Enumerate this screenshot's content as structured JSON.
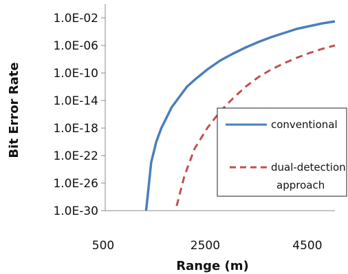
{
  "chart_data": {
    "type": "line",
    "title": "",
    "xlabel": "Range (m)",
    "ylabel": "Bit Error Rate",
    "xlim": [
      500,
      5000
    ],
    "xticks": [
      500,
      2500,
      4500
    ],
    "xtick_labels": [
      "500",
      "2500",
      "4500"
    ],
    "ylim_log10": [
      -30,
      0
    ],
    "y_scale": "log",
    "yticks_log10": [
      -2,
      -6,
      -10,
      -14,
      -18,
      -22,
      -26,
      -30
    ],
    "ytick_labels": [
      "1.0E-02",
      "1.0E-06",
      "1.0E-10",
      "1.0E-14",
      "1.0E-18",
      "1.0E-22",
      "1.0E-26",
      "1.0E-30"
    ],
    "grid": false,
    "legend_position": "right",
    "series": [
      {
        "name": "conventional",
        "style": "solid",
        "color": "#4a7ebb",
        "x": [
          1300,
          1330,
          1400,
          1500,
          1600,
          1700,
          1800,
          1900,
          2000,
          2100,
          2250,
          2500,
          2750,
          3000,
          3250,
          3500,
          3750,
          4000,
          4250,
          4500,
          4750,
          5000
        ],
        "y": [
          "1.0E-30",
          "1.0E-28",
          "1.0E-23",
          "1.0E-20",
          "1.0E-18",
          "1.0E-16.5",
          "1.0E-15",
          "1.0E-14",
          "1.0E-13",
          "1.0E-12",
          "1.0E-11",
          "1.0E-9.5",
          "1.0E-8.2",
          "1.0E-7.2",
          "1.0E-6.3",
          "1.0E-5.5",
          "1.0E-4.8",
          "1.0E-4.2",
          "1.0E-3.6",
          "1.0E-3.2",
          "1.0E-2.8",
          "1.0E-2.5"
        ]
      },
      {
        "name": "dual-detection approach",
        "style": "dashed",
        "color": "#c0504d",
        "x": [
          1900,
          2050,
          2250,
          2500,
          2750,
          3000,
          3250,
          3500,
          3750,
          4000,
          4250,
          4500,
          4750,
          5000
        ],
        "y": [
          "1.0E-29.3",
          "1.0E-25",
          "1.0E-21",
          "1.0E-18",
          "1.0E-15.6",
          "1.0E-13.7",
          "1.0E-12",
          "1.0E-10.6",
          "1.0E-9.5",
          "1.0E-8.6",
          "1.0E-7.8",
          "1.0E-7.1",
          "1.0E-6.5",
          "1.0E-6.0"
        ],
        "legend_lines": [
          "dual-detection",
          "approach"
        ]
      }
    ],
    "y_log10_values": {
      "conventional": [
        -30,
        -28,
        -23,
        -20,
        -18,
        -16.5,
        -15,
        -14,
        -13,
        -12,
        -11,
        -9.5,
        -8.2,
        -7.2,
        -6.3,
        -5.5,
        -4.8,
        -4.2,
        -3.6,
        -3.2,
        -2.8,
        -2.5
      ],
      "dual-detection approach": [
        -29.3,
        -25,
        -21,
        -18,
        -15.6,
        -13.7,
        -12,
        -10.6,
        -9.5,
        -8.6,
        -7.8,
        -7.1,
        -6.5,
        -6.0
      ]
    }
  },
  "colors": {
    "axis": "#888888",
    "legend_border": "#222222",
    "text": "#111111"
  }
}
